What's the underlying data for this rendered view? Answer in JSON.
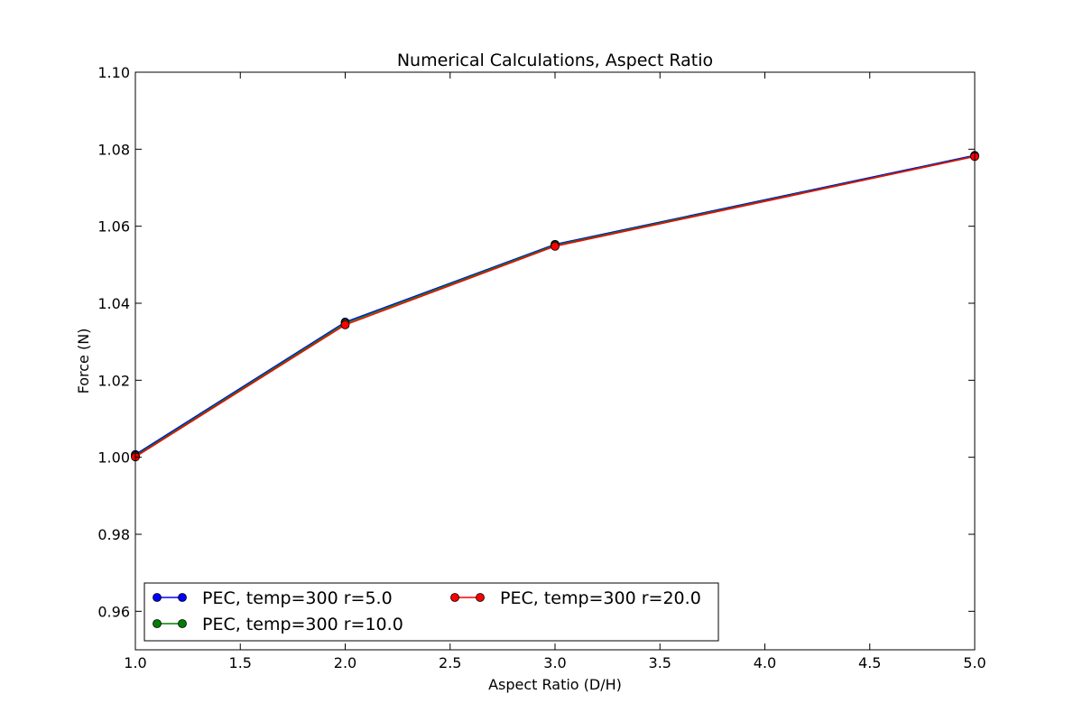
{
  "chart_data": {
    "type": "line",
    "title": "Numerical Calculations, Aspect Ratio",
    "xlabel": "Aspect Ratio (D/H)",
    "ylabel": "Force (N)",
    "xlim": [
      1.0,
      5.0
    ],
    "ylim": [
      0.95,
      1.1
    ],
    "xticks": [
      "1.0",
      "1.5",
      "2.0",
      "2.5",
      "3.0",
      "3.5",
      "4.0",
      "4.5",
      "5.0"
    ],
    "yticks": [
      "0.96",
      "0.98",
      "1.00",
      "1.02",
      "1.04",
      "1.06",
      "1.08",
      "1.10"
    ],
    "grid": false,
    "legend_position": "lower-left",
    "series": [
      {
        "name": "PEC, temp=300 r=5.0",
        "color": "#0000ff",
        "x": [
          1.0,
          2.0,
          3.0,
          5.0
        ],
        "y": [
          1.0007,
          1.0351,
          1.0553,
          1.0784
        ]
      },
      {
        "name": "PEC, temp=300 r=10.0",
        "color": "#008000",
        "x": [
          1.0,
          2.0,
          3.0,
          5.0
        ],
        "y": [
          1.0004,
          1.0348,
          1.0551,
          1.0782
        ]
      },
      {
        "name": "PEC, temp=300 r=20.0",
        "color": "#ff0000",
        "x": [
          1.0,
          2.0,
          3.0,
          5.0
        ],
        "y": [
          1.0001,
          1.0344,
          1.0548,
          1.0781
        ]
      }
    ]
  }
}
